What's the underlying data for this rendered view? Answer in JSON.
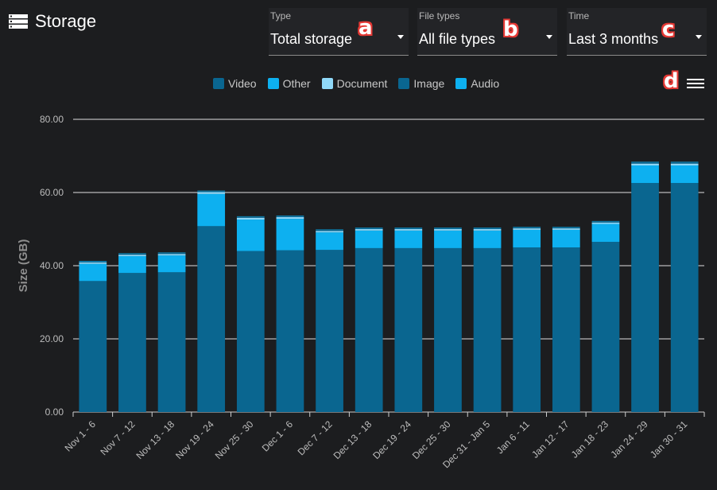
{
  "header": {
    "title": "Storage",
    "icon": "storage-icon"
  },
  "filters": {
    "type": {
      "label": "Type",
      "value": "Total storage"
    },
    "file_types": {
      "label": "File types",
      "value": "All file types"
    },
    "time": {
      "label": "Time",
      "value": "Last 3 months"
    }
  },
  "annotations": {
    "a": "a",
    "b": "b",
    "c": "c",
    "d": "d"
  },
  "menu": {
    "icon": "hamburger-menu-icon"
  },
  "chart_data": {
    "type": "bar",
    "stacked": true,
    "ylabel": "Size (GB)",
    "ylim": [
      0,
      80
    ],
    "y_ticks": [
      "0.00",
      "20.00",
      "40.00",
      "60.00",
      "80.00"
    ],
    "grid": true,
    "legend_position": "top-center",
    "categories": [
      "Nov 1 - 6",
      "Nov 7 - 12",
      "Nov 13 - 18",
      "Nov 19 - 24",
      "Nov 25 - 30",
      "Dec 1 - 6",
      "Dec 7 - 12",
      "Dec 13 - 18",
      "Dec 19 - 24",
      "Dec 25 - 30",
      "Dec 31 - Jan 5",
      "Jan 6 - 11",
      "Jan 12 - 17",
      "Jan 18 - 23",
      "Jan 24 - 29",
      "Jan 30 - 31"
    ],
    "series": [
      {
        "name": "Video",
        "color": "#0a6690",
        "values": [
          35.8,
          38.0,
          38.2,
          50.8,
          44.0,
          44.2,
          44.3,
          44.8,
          44.8,
          44.8,
          44.8,
          45.0,
          45.0,
          46.5,
          62.6,
          62.6
        ]
      },
      {
        "name": "Other",
        "color": "#0db0f0",
        "values": [
          4.7,
          4.6,
          4.6,
          8.8,
          8.6,
          8.6,
          4.8,
          4.8,
          4.8,
          4.8,
          4.8,
          4.8,
          4.8,
          4.9,
          4.8,
          4.8
        ]
      },
      {
        "name": "Document",
        "color": "#8fd8f8",
        "values": [
          0.4,
          0.4,
          0.4,
          0.5,
          0.5,
          0.5,
          0.4,
          0.4,
          0.4,
          0.4,
          0.4,
          0.4,
          0.4,
          0.4,
          0.5,
          0.5
        ]
      },
      {
        "name": "Image",
        "color": "#0a6690",
        "values": [
          0.3,
          0.3,
          0.3,
          0.3,
          0.3,
          0.3,
          0.3,
          0.3,
          0.3,
          0.3,
          0.3,
          0.3,
          0.3,
          0.3,
          0.4,
          0.4
        ]
      },
      {
        "name": "Audio",
        "color": "#0db0f0",
        "values": [
          0.1,
          0.1,
          0.1,
          0.1,
          0.1,
          0.1,
          0.1,
          0.1,
          0.1,
          0.1,
          0.1,
          0.1,
          0.1,
          0.1,
          0.1,
          0.1
        ]
      }
    ]
  }
}
